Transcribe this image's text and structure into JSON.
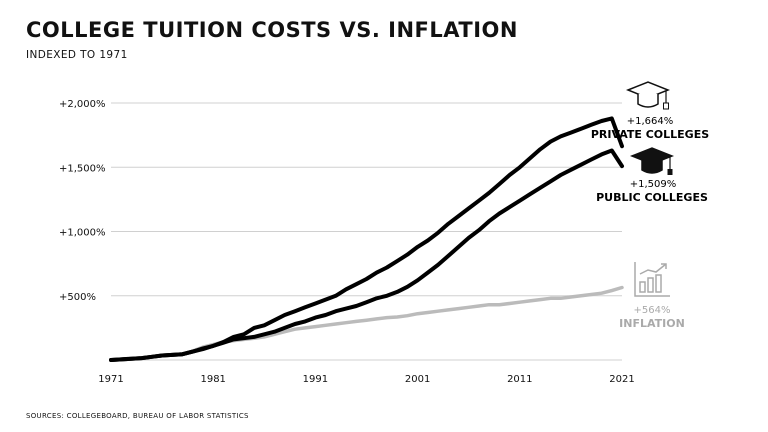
{
  "header": {
    "title": "College Tuition Costs vs. Inflation",
    "subtitle": "Indexed to 1971"
  },
  "footer": {
    "source": "Sources: Collegeboard, Bureau of Labor Statistics"
  },
  "colors": {
    "private": "#000000",
    "public": "#000000",
    "inflation": "#bbbbbb",
    "grid": "#d0d0d0"
  },
  "icons": {
    "private": "graduation-cap-outline-icon",
    "public": "graduation-cap-filled-icon",
    "inflation": "bar-chart-trend-icon"
  },
  "chart_data": {
    "type": "line",
    "title": "College Tuition Costs vs. Inflation",
    "subtitle": "Indexed to 1971",
    "xlabel": "",
    "ylabel": "",
    "xlim": [
      1971,
      2021
    ],
    "ylim": [
      0,
      2000
    ],
    "grid": true,
    "y_ticks": [
      500,
      1000,
      1500,
      2000
    ],
    "y_tick_labels": [
      "+500%",
      "+1,000%",
      "+1,500%",
      "+2,000%"
    ],
    "x_ticks": [
      1971,
      1981,
      1991,
      2001,
      2011,
      2021
    ],
    "x_tick_labels": [
      "1971",
      "1981",
      "1991",
      "2001",
      "2011",
      "2021"
    ],
    "x": [
      1971,
      1972,
      1973,
      1974,
      1975,
      1976,
      1977,
      1978,
      1979,
      1980,
      1981,
      1982,
      1983,
      1984,
      1985,
      1986,
      1987,
      1988,
      1989,
      1990,
      1991,
      1992,
      1993,
      1994,
      1995,
      1996,
      1997,
      1998,
      1999,
      2000,
      2001,
      2002,
      2003,
      2004,
      2005,
      2006,
      2007,
      2008,
      2009,
      2010,
      2011,
      2012,
      2013,
      2014,
      2015,
      2016,
      2017,
      2018,
      2019,
      2020,
      2021
    ],
    "series": [
      {
        "key": "private",
        "annotation_pct": "+1,664%",
        "annotation_label": "Private Colleges",
        "values": [
          0,
          5,
          10,
          15,
          25,
          35,
          40,
          45,
          65,
          90,
          110,
          140,
          180,
          200,
          250,
          270,
          310,
          350,
          380,
          410,
          440,
          470,
          500,
          550,
          590,
          630,
          680,
          720,
          770,
          820,
          880,
          930,
          990,
          1060,
          1120,
          1180,
          1240,
          1300,
          1370,
          1440,
          1500,
          1570,
          1640,
          1700,
          1740,
          1770,
          1800,
          1830,
          1860,
          1880,
          1664
        ]
      },
      {
        "key": "public",
        "annotation_pct": "+1,509%",
        "annotation_label": "Public Colleges",
        "values": [
          0,
          5,
          10,
          15,
          25,
          35,
          40,
          45,
          65,
          85,
          110,
          135,
          160,
          170,
          180,
          200,
          220,
          250,
          280,
          300,
          330,
          350,
          380,
          400,
          420,
          450,
          480,
          500,
          530,
          570,
          620,
          680,
          740,
          810,
          880,
          950,
          1010,
          1080,
          1140,
          1190,
          1240,
          1290,
          1340,
          1390,
          1440,
          1480,
          1520,
          1560,
          1600,
          1630,
          1509
        ]
      },
      {
        "key": "inflation",
        "annotation_pct": "+564%",
        "annotation_label": "Inflation",
        "values": [
          0,
          5,
          10,
          15,
          25,
          35,
          40,
          45,
          70,
          100,
          120,
          140,
          150,
          160,
          170,
          180,
          200,
          220,
          240,
          250,
          260,
          270,
          280,
          290,
          300,
          310,
          320,
          330,
          335,
          345,
          360,
          370,
          380,
          390,
          400,
          410,
          420,
          430,
          430,
          440,
          450,
          460,
          470,
          480,
          480,
          490,
          500,
          510,
          520,
          540,
          564
        ]
      }
    ]
  }
}
